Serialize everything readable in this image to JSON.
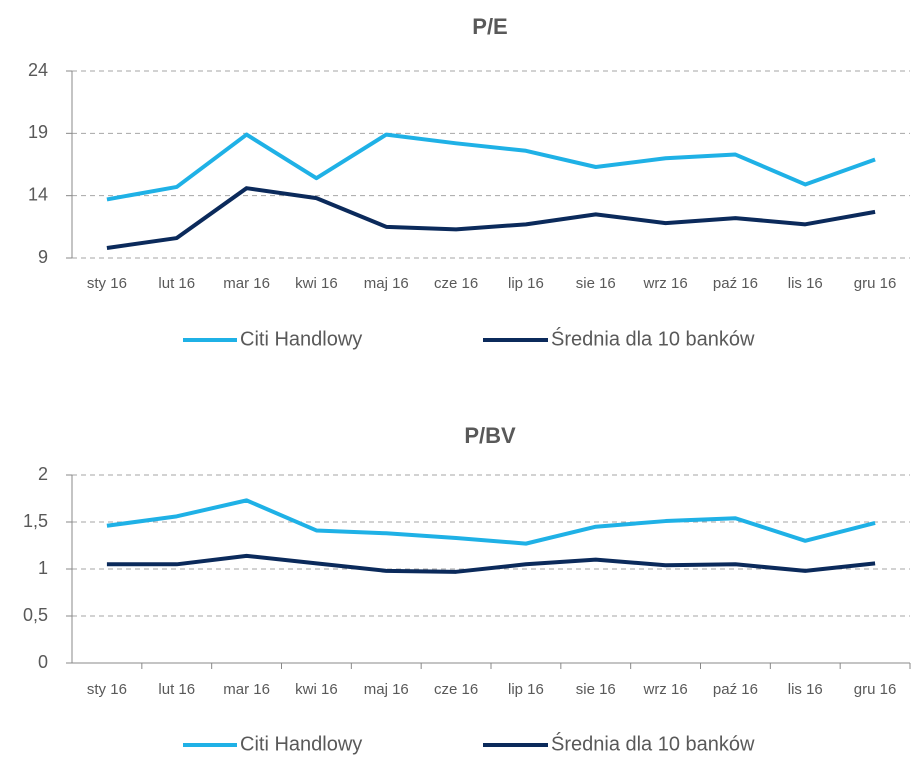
{
  "chart_data": [
    {
      "type": "line",
      "title": "P/E",
      "categories": [
        "sty 16",
        "lut 16",
        "mar 16",
        "kwi 16",
        "maj 16",
        "cze 16",
        "lip 16",
        "sie 16",
        "wrz 16",
        "paź 16",
        "lis 16",
        "gru 16"
      ],
      "series": [
        {
          "name": "Citi Handlowy",
          "color": "#1fb1e6",
          "values": [
            13.7,
            14.7,
            18.9,
            15.4,
            18.9,
            18.2,
            17.6,
            16.3,
            17.0,
            17.3,
            14.9,
            16.9
          ]
        },
        {
          "name": "Średnia dla 10 banków",
          "color": "#0b2a5b",
          "values": [
            9.8,
            10.6,
            14.6,
            13.8,
            11.5,
            11.3,
            11.7,
            12.5,
            11.8,
            12.2,
            11.7,
            12.7
          ]
        }
      ],
      "ylim": [
        9,
        24
      ],
      "yticks": [
        9,
        14,
        19,
        24
      ],
      "grid": true,
      "legend": "bottom"
    },
    {
      "type": "line",
      "title": "P/BV",
      "categories": [
        "sty 16",
        "lut 16",
        "mar 16",
        "kwi 16",
        "maj 16",
        "cze 16",
        "lip 16",
        "sie 16",
        "wrz 16",
        "paź 16",
        "lis 16",
        "gru 16"
      ],
      "series": [
        {
          "name": "Citi Handlowy",
          "color": "#1fb1e6",
          "values": [
            1.46,
            1.56,
            1.73,
            1.41,
            1.38,
            1.33,
            1.27,
            1.45,
            1.51,
            1.54,
            1.3,
            1.49
          ]
        },
        {
          "name": "Średnia dla 10 banków",
          "color": "#0b2a5b",
          "values": [
            1.05,
            1.05,
            1.14,
            1.06,
            0.98,
            0.97,
            1.05,
            1.1,
            1.04,
            1.05,
            0.98,
            1.06
          ]
        }
      ],
      "ylim": [
        0,
        2
      ],
      "yticks": [
        0,
        {
          "value": 0.5,
          "label": "0,5"
        },
        1,
        {
          "value": 1.5,
          "label": "1,5"
        },
        2
      ],
      "grid": true,
      "legend": "bottom"
    }
  ]
}
